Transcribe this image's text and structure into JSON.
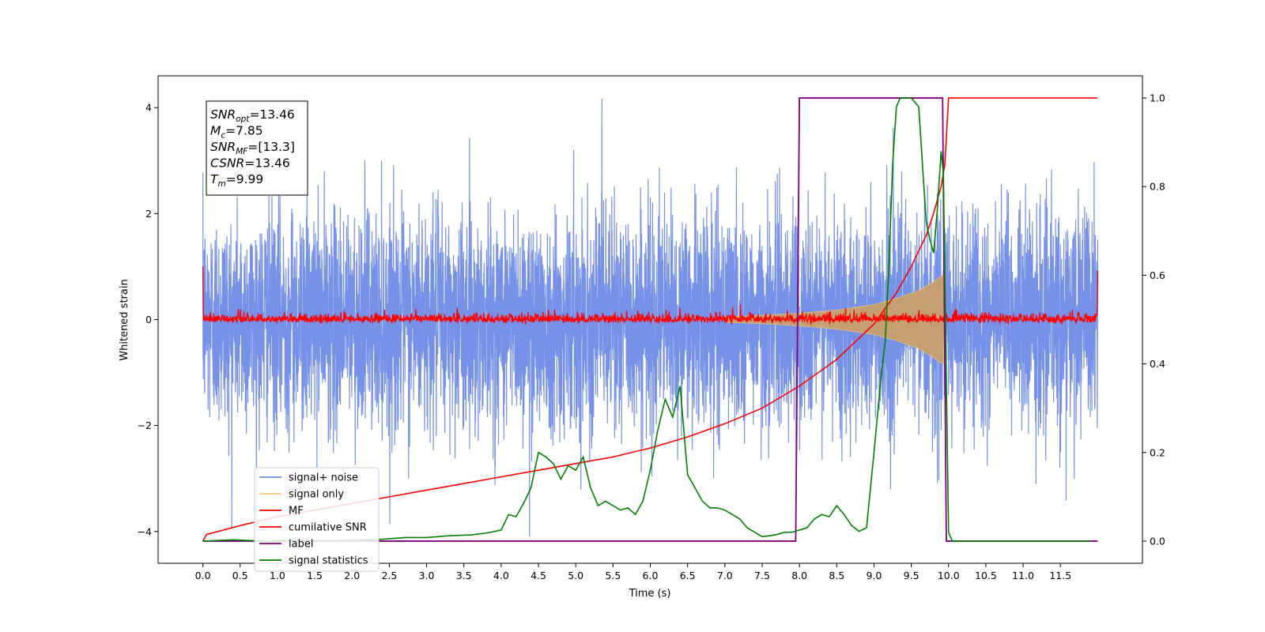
{
  "chart_data": {
    "type": "line",
    "title": "",
    "xlabel": "Time (s)",
    "ylabel": "Whitened strain",
    "y2label": "",
    "xlim": [
      -0.6,
      12.6
    ],
    "ylim": [
      -4.6,
      4.6
    ],
    "y2lim": [
      -0.05,
      1.05
    ],
    "x_ticks": [
      0.0,
      0.5,
      1.0,
      1.5,
      2.0,
      2.5,
      3.0,
      3.5,
      4.0,
      4.5,
      5.0,
      5.5,
      6.0,
      6.5,
      7.0,
      7.5,
      8.0,
      8.5,
      9.0,
      9.5,
      10.0,
      10.5,
      11.0,
      11.5
    ],
    "x_tick_labels": [
      "0.0",
      "0.5",
      "1.0",
      "1.5",
      "2.0",
      "2.5",
      "3.0",
      "3.5",
      "4.0",
      "4.5",
      "5.0",
      "5.5",
      "6.0",
      "6.5",
      "7.0",
      "7.5",
      "8.0",
      "8.5",
      "9.0",
      "9.5",
      "10.0",
      "10.5",
      "11.0",
      "11.5"
    ],
    "y_ticks": [
      -4,
      -2,
      0,
      2,
      4
    ],
    "y_tick_labels": [
      "−4",
      "−2",
      "0",
      "2",
      "4"
    ],
    "y2_ticks": [
      0.0,
      0.2,
      0.4,
      0.6,
      0.8,
      1.0
    ],
    "y2_tick_labels": [
      "0.0",
      "0.2",
      "0.4",
      "0.6",
      "0.8",
      "1.0"
    ],
    "grid": false,
    "legend_position": "lower-left",
    "series": [
      {
        "name": "signal+ noise",
        "color": "#6f8be6",
        "axis": "left",
        "x_range": [
          0.0,
          12.0
        ],
        "noise_std": 1.0,
        "extreme_min": -4.1,
        "extreme_max": 4.17
      },
      {
        "name": "signal only",
        "color": "#f5c97a",
        "axis": "left",
        "x": [
          7.0,
          7.5,
          8.0,
          8.5,
          9.0,
          9.3,
          9.6,
          9.8,
          9.93,
          9.94
        ],
        "envelope": [
          0.05,
          0.08,
          0.12,
          0.18,
          0.28,
          0.4,
          0.55,
          0.72,
          0.85,
          0.0
        ]
      },
      {
        "name": "MF",
        "color": "#ff0000",
        "axis": "left",
        "x_range": [
          0.0,
          12.0
        ],
        "noise_std": 0.06,
        "x_start_value": 1.0,
        "x_end_value": 0.92
      },
      {
        "name": "cumilative SNR",
        "color": "#ff0000",
        "axis": "right",
        "x": [
          0.0,
          0.05,
          0.5,
          1.0,
          1.5,
          2.0,
          2.5,
          3.0,
          3.5,
          4.0,
          4.5,
          5.0,
          5.5,
          6.0,
          6.5,
          7.0,
          7.5,
          8.0,
          8.5,
          9.0,
          9.3,
          9.5,
          9.7,
          9.8,
          9.9,
          9.95,
          10.0,
          12.0
        ],
        "values": [
          0.0,
          0.015,
          0.035,
          0.055,
          0.07,
          0.085,
          0.1,
          0.115,
          0.13,
          0.145,
          0.16,
          0.175,
          0.19,
          0.21,
          0.235,
          0.265,
          0.3,
          0.35,
          0.41,
          0.49,
          0.56,
          0.62,
          0.69,
          0.74,
          0.8,
          0.85,
          1.0,
          1.0
        ]
      },
      {
        "name": "label",
        "color": "#800080",
        "axis": "right",
        "x": [
          0.0,
          7.95,
          8.0,
          9.92,
          9.97,
          12.0
        ],
        "values": [
          0.0,
          0.0,
          1.0,
          1.0,
          0.0,
          0.0
        ]
      },
      {
        "name": "signal statistics",
        "color": "#008000",
        "axis": "right",
        "x": [
          0.0,
          0.4,
          0.8,
          1.2,
          1.6,
          2.0,
          2.4,
          2.7,
          3.0,
          3.3,
          3.6,
          3.8,
          4.0,
          4.1,
          4.2,
          4.3,
          4.4,
          4.5,
          4.6,
          4.7,
          4.8,
          4.9,
          5.0,
          5.1,
          5.2,
          5.3,
          5.4,
          5.5,
          5.6,
          5.7,
          5.8,
          5.9,
          6.0,
          6.1,
          6.2,
          6.3,
          6.4,
          6.5,
          6.6,
          6.7,
          6.8,
          6.9,
          7.0,
          7.1,
          7.2,
          7.3,
          7.4,
          7.5,
          7.6,
          7.7,
          7.8,
          7.9,
          8.0,
          8.1,
          8.2,
          8.3,
          8.4,
          8.5,
          8.6,
          8.7,
          8.8,
          8.9,
          9.0,
          9.1,
          9.15,
          9.2,
          9.25,
          9.3,
          9.35,
          9.5,
          9.6,
          9.65,
          9.7,
          9.75,
          9.8,
          9.85,
          9.9,
          9.93,
          10.0,
          10.05,
          10.5,
          11.0,
          11.5,
          11.9
        ],
        "values": [
          0.0,
          0.003,
          0.0,
          0.002,
          0.001,
          0.002,
          0.004,
          0.008,
          0.008,
          0.012,
          0.014,
          0.018,
          0.025,
          0.06,
          0.055,
          0.085,
          0.12,
          0.2,
          0.19,
          0.175,
          0.14,
          0.17,
          0.16,
          0.19,
          0.12,
          0.08,
          0.09,
          0.08,
          0.07,
          0.075,
          0.06,
          0.09,
          0.16,
          0.25,
          0.32,
          0.28,
          0.35,
          0.15,
          0.12,
          0.09,
          0.075,
          0.075,
          0.07,
          0.06,
          0.05,
          0.03,
          0.02,
          0.01,
          0.012,
          0.015,
          0.02,
          0.02,
          0.025,
          0.03,
          0.05,
          0.06,
          0.055,
          0.08,
          0.06,
          0.035,
          0.022,
          0.03,
          0.2,
          0.38,
          0.45,
          0.62,
          0.85,
          0.98,
          1.0,
          1.0,
          0.98,
          0.85,
          0.72,
          0.68,
          0.65,
          0.75,
          0.88,
          0.83,
          0.02,
          0.0,
          0.0,
          0.0,
          0.0,
          0.0
        ]
      }
    ],
    "annotation": {
      "lines": [
        {
          "main": "SNR",
          "sub": "opt",
          "value": "=13.46"
        },
        {
          "main": "M",
          "sub": "c",
          "value": "=7.85"
        },
        {
          "main": "SNR",
          "sub": "MF",
          "value": "=[13.3]"
        },
        {
          "main": "CSNR",
          "sub": "",
          "value": "=13.46"
        },
        {
          "main": "T",
          "sub": "m",
          "value": "=9.99"
        }
      ]
    }
  }
}
